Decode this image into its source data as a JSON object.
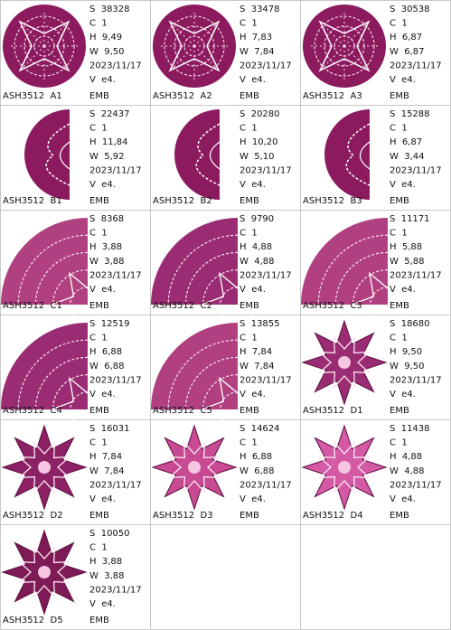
{
  "cells": [
    {
      "name": "ASH3512  A1",
      "lines": [
        "S  38328",
        "C  1",
        "H  9,49",
        "W  9,50",
        "2023/11/17",
        "V  e4."
      ],
      "format": "EMB"
    },
    {
      "name": "ASH3512  A2",
      "lines": [
        "S  33478",
        "C  1",
        "H  7,83",
        "W  7,84",
        "2023/11/17",
        "V  e4."
      ],
      "format": "EMB"
    },
    {
      "name": "ASH3512  A3",
      "lines": [
        "S  30538",
        "C  1",
        "H  6,87",
        "W  6,87",
        "2023/11/17",
        "V  e4."
      ],
      "format": "EMB"
    },
    {
      "name": "ASH3512  B1",
      "lines": [
        "S  22437",
        "C  1",
        "H  11,84",
        "W  5,92",
        "2023/11/17",
        "V  e4."
      ],
      "format": "EMB"
    },
    {
      "name": "ASH3512  B2",
      "lines": [
        "S  20280",
        "C  1",
        "H  10,20",
        "W  5,10",
        "2023/11/17",
        "V  e4."
      ],
      "format": "EMB"
    },
    {
      "name": "ASH3512  B3",
      "lines": [
        "S  15288",
        "C  1",
        "H  6,87",
        "W  3,44",
        "2023/11/17",
        "V  e4."
      ],
      "format": "EMB"
    },
    {
      "name": "ASH3512  C1",
      "lines": [
        "S  8368",
        "C  1",
        "H  3,88",
        "W  3,88",
        "2023/11/17",
        "V  e4."
      ],
      "format": "EMB"
    },
    {
      "name": "ASH3512  C2",
      "lines": [
        "S  9790",
        "C  1",
        "H  4,88",
        "W  4,88",
        "2023/11/17",
        "V  e4."
      ],
      "format": "EMB"
    },
    {
      "name": "ASH3512  C3",
      "lines": [
        "S  11171",
        "C  1",
        "H  5,88",
        "W  5,88",
        "2023/11/17",
        "V  e4."
      ],
      "format": "EMB"
    },
    {
      "name": "ASH3512  C4",
      "lines": [
        "S  12519",
        "C  1",
        "H  6,88",
        "W  6,88",
        "2023/11/17",
        "V  e4."
      ],
      "format": "EMB"
    },
    {
      "name": "ASH3512  C5",
      "lines": [
        "S  13855",
        "C  1",
        "H  7,84",
        "W  7,84",
        "2023/11/17",
        "V  e4."
      ],
      "format": "EMB"
    },
    {
      "name": "ASH3512  D1",
      "lines": [
        "S  18680",
        "C  1",
        "H  9,50",
        "W  9,50",
        "2023/11/17",
        "V  e4."
      ],
      "format": "EMB"
    },
    {
      "name": "ASH3512  D2",
      "lines": [
        "S  16031",
        "C  1",
        "H  7,84",
        "W  7,84",
        "2023/11/17",
        "V  e4."
      ],
      "format": "EMB"
    },
    {
      "name": "ASH3512  D3",
      "lines": [
        "S  14624",
        "C  1",
        "H  6,88",
        "W  6,88",
        "2023/11/17",
        "V  e4."
      ],
      "format": "EMB"
    },
    {
      "name": "ASH3512  D4",
      "lines": [
        "S  11438",
        "C  1",
        "H  4,88",
        "W  4,88",
        "2023/11/17",
        "V  e4."
      ],
      "format": "EMB"
    },
    {
      "name": "ASH3512  D5",
      "lines": [
        "S  10050",
        "C  1",
        "H  3,88",
        "W  3,88",
        "2023/11/17",
        "V  e4."
      ],
      "format": "EMB"
    }
  ]
}
